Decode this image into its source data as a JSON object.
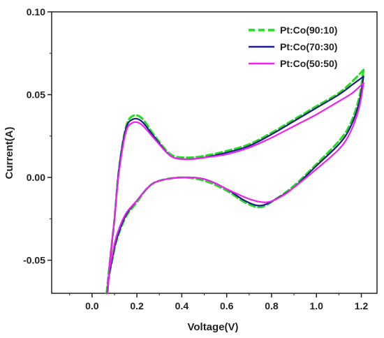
{
  "chart_data": {
    "type": "line",
    "title": "",
    "xlabel": "Voltage(V)",
    "ylabel": "Current(A)",
    "xlim": [
      -0.18,
      1.27
    ],
    "ylim": [
      -0.07,
      0.1
    ],
    "xticks": [
      0.0,
      0.2,
      0.4,
      0.6,
      0.8,
      1.0,
      1.2
    ],
    "xtick_labels": [
      "0.0",
      "0.2",
      "0.4",
      "0.6",
      "0.8",
      "1.0",
      "1.2"
    ],
    "yticks": [
      -0.05,
      0.0,
      0.05,
      0.1
    ],
    "ytick_labels": [
      "-0.05",
      "0.00",
      "0.05",
      "0.10"
    ],
    "grid": false,
    "legend_position": "top-right",
    "series": [
      {
        "name": "Pt:Co(90:10)",
        "color": "#22dd22",
        "style": "dashed",
        "forward": [
          [
            0.065,
            -0.07
          ],
          [
            0.08,
            -0.05
          ],
          [
            0.1,
            -0.025
          ],
          [
            0.12,
            0.005
          ],
          [
            0.15,
            0.03
          ],
          [
            0.18,
            0.037
          ],
          [
            0.22,
            0.036
          ],
          [
            0.28,
            0.025
          ],
          [
            0.35,
            0.014
          ],
          [
            0.42,
            0.012
          ],
          [
            0.5,
            0.013
          ],
          [
            0.6,
            0.016
          ],
          [
            0.7,
            0.02
          ],
          [
            0.8,
            0.027
          ],
          [
            0.9,
            0.035
          ],
          [
            1.0,
            0.043
          ],
          [
            1.1,
            0.051
          ],
          [
            1.16,
            0.058
          ],
          [
            1.21,
            0.065
          ]
        ],
        "reverse": [
          [
            1.21,
            0.065
          ],
          [
            1.19,
            0.048
          ],
          [
            1.15,
            0.032
          ],
          [
            1.1,
            0.022
          ],
          [
            1.0,
            0.008
          ],
          [
            0.9,
            -0.005
          ],
          [
            0.82,
            -0.013
          ],
          [
            0.75,
            -0.018
          ],
          [
            0.68,
            -0.015
          ],
          [
            0.6,
            -0.008
          ],
          [
            0.5,
            -0.002
          ],
          [
            0.4,
            0.0
          ],
          [
            0.3,
            -0.002
          ],
          [
            0.25,
            -0.006
          ],
          [
            0.2,
            -0.015
          ],
          [
            0.15,
            -0.024
          ],
          [
            0.11,
            -0.038
          ],
          [
            0.09,
            -0.05
          ],
          [
            0.075,
            -0.06
          ],
          [
            0.065,
            -0.07
          ]
        ]
      },
      {
        "name": "Pt:Co(70:30)",
        "color": "#1c1c8a",
        "style": "solid",
        "forward": [
          [
            0.068,
            -0.07
          ],
          [
            0.08,
            -0.05
          ],
          [
            0.1,
            -0.025
          ],
          [
            0.12,
            0.005
          ],
          [
            0.15,
            0.029
          ],
          [
            0.18,
            0.035
          ],
          [
            0.22,
            0.034
          ],
          [
            0.28,
            0.024
          ],
          [
            0.35,
            0.013
          ],
          [
            0.42,
            0.011
          ],
          [
            0.5,
            0.012
          ],
          [
            0.6,
            0.015
          ],
          [
            0.7,
            0.019
          ],
          [
            0.8,
            0.026
          ],
          [
            0.9,
            0.034
          ],
          [
            1.0,
            0.042
          ],
          [
            1.1,
            0.05
          ],
          [
            1.16,
            0.056
          ],
          [
            1.21,
            0.061
          ]
        ],
        "reverse": [
          [
            1.21,
            0.061
          ],
          [
            1.19,
            0.045
          ],
          [
            1.15,
            0.03
          ],
          [
            1.1,
            0.02
          ],
          [
            1.0,
            0.007
          ],
          [
            0.9,
            -0.006
          ],
          [
            0.82,
            -0.013
          ],
          [
            0.75,
            -0.017
          ],
          [
            0.68,
            -0.014
          ],
          [
            0.6,
            -0.007
          ],
          [
            0.5,
            -0.001
          ],
          [
            0.4,
            0.0
          ],
          [
            0.3,
            -0.002
          ],
          [
            0.25,
            -0.006
          ],
          [
            0.2,
            -0.014
          ],
          [
            0.15,
            -0.023
          ],
          [
            0.11,
            -0.037
          ],
          [
            0.09,
            -0.049
          ],
          [
            0.075,
            -0.06
          ],
          [
            0.068,
            -0.07
          ]
        ]
      },
      {
        "name": "Pt:Co(50:50)",
        "color": "#ee22ee",
        "style": "solid",
        "forward": [
          [
            0.07,
            -0.07
          ],
          [
            0.08,
            -0.05
          ],
          [
            0.1,
            -0.025
          ],
          [
            0.12,
            0.003
          ],
          [
            0.15,
            0.027
          ],
          [
            0.18,
            0.033
          ],
          [
            0.22,
            0.032
          ],
          [
            0.28,
            0.023
          ],
          [
            0.35,
            0.013
          ],
          [
            0.42,
            0.011
          ],
          [
            0.5,
            0.012
          ],
          [
            0.6,
            0.014
          ],
          [
            0.7,
            0.018
          ],
          [
            0.8,
            0.024
          ],
          [
            0.9,
            0.031
          ],
          [
            1.0,
            0.038
          ],
          [
            1.1,
            0.046
          ],
          [
            1.16,
            0.051
          ],
          [
            1.21,
            0.057
          ]
        ],
        "reverse": [
          [
            1.21,
            0.057
          ],
          [
            1.19,
            0.042
          ],
          [
            1.15,
            0.027
          ],
          [
            1.1,
            0.017
          ],
          [
            1.0,
            0.005
          ],
          [
            0.9,
            -0.006
          ],
          [
            0.85,
            -0.011
          ],
          [
            0.78,
            -0.015
          ],
          [
            0.7,
            -0.013
          ],
          [
            0.6,
            -0.007
          ],
          [
            0.5,
            -0.001
          ],
          [
            0.4,
            0.0
          ],
          [
            0.3,
            -0.002
          ],
          [
            0.25,
            -0.006
          ],
          [
            0.2,
            -0.014
          ],
          [
            0.15,
            -0.022
          ],
          [
            0.11,
            -0.035
          ],
          [
            0.09,
            -0.047
          ],
          [
            0.075,
            -0.058
          ],
          [
            0.07,
            -0.07
          ]
        ]
      }
    ]
  }
}
